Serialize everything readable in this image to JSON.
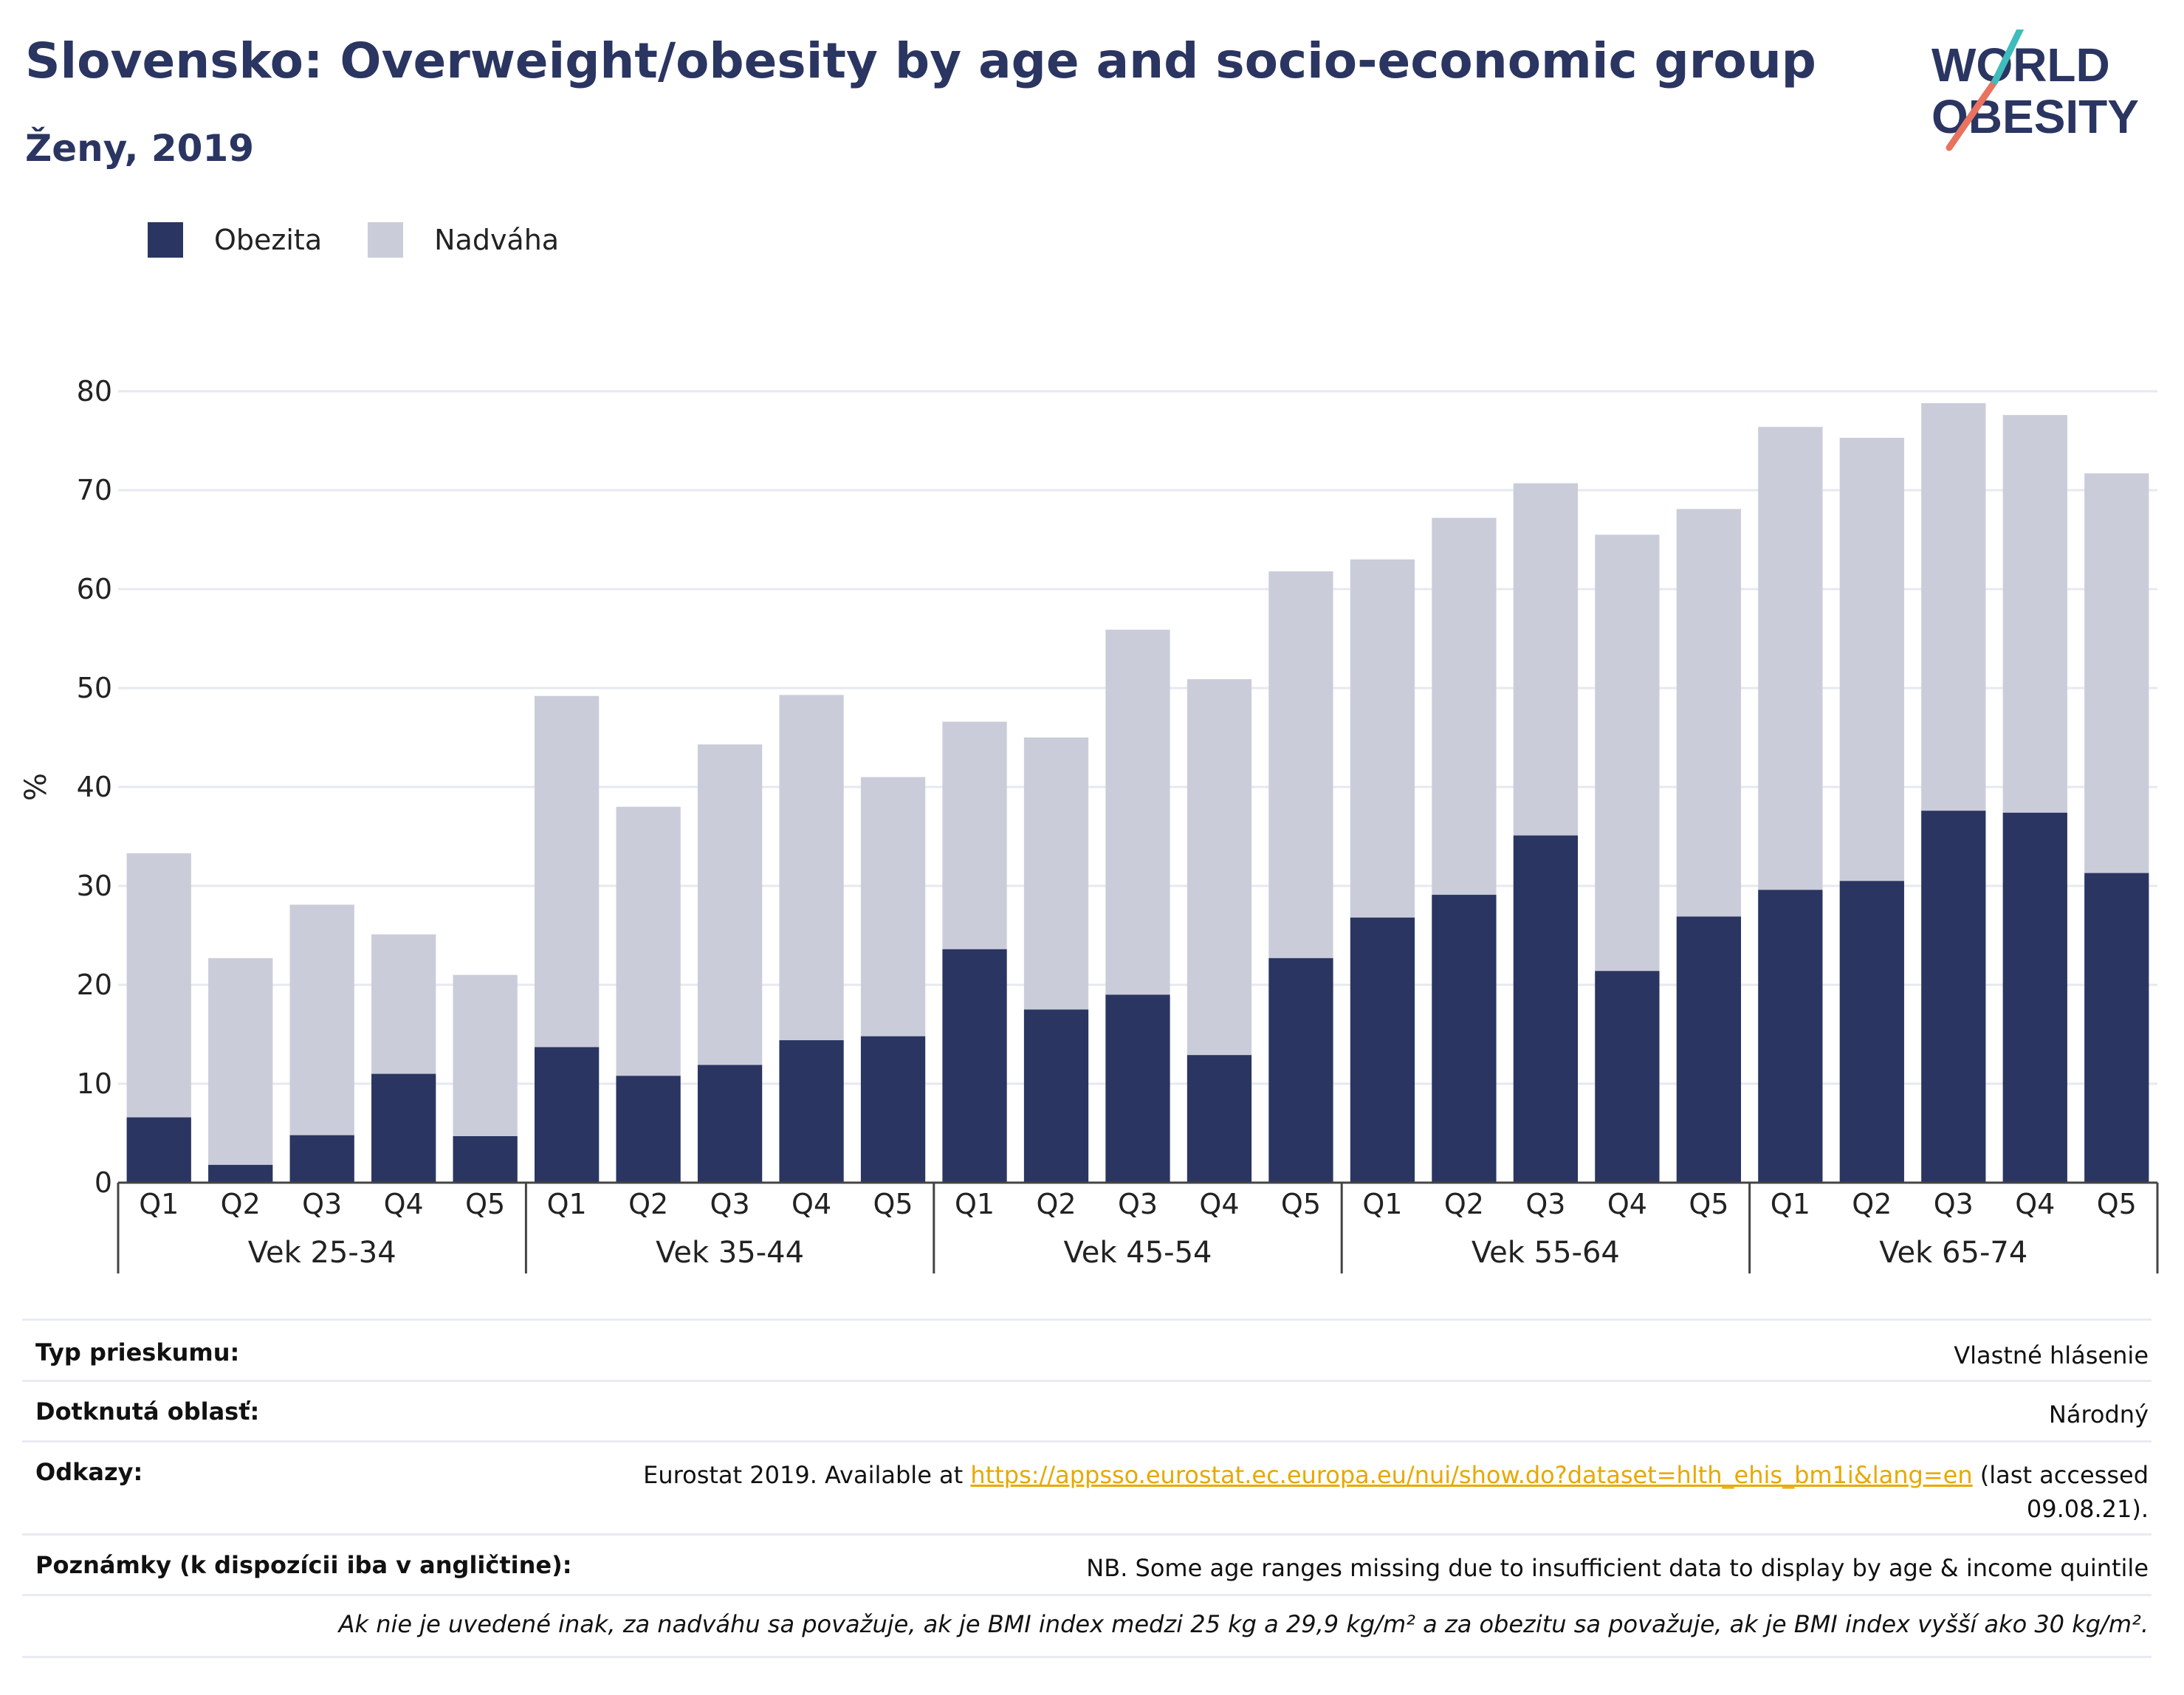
{
  "title": "Slovensko: Overweight/obesity by age and socio-economic group",
  "subtitle": "Ženy, 2019",
  "logo": {
    "line1": "WORLD",
    "line2": "OBESITY"
  },
  "legend": [
    {
      "label": "Obezita",
      "color": "#2a3561"
    },
    {
      "label": "Nadváha",
      "color": "#cacdd9"
    }
  ],
  "chart_data": {
    "type": "bar",
    "stacked": true,
    "ylabel": "%",
    "ylim": [
      0,
      80
    ],
    "yticks": [
      0,
      10,
      20,
      30,
      40,
      50,
      60,
      70,
      80
    ],
    "grid": true,
    "legend_position": "top-left",
    "groups": [
      "Vek 25-34",
      "Vek 35-44",
      "Vek 45-54",
      "Vek 55-64",
      "Vek 65-74"
    ],
    "subcategories": [
      "Q1",
      "Q2",
      "Q3",
      "Q4",
      "Q5"
    ],
    "series": [
      {
        "name": "Obezita",
        "color": "#2a3561",
        "values": [
          6.6,
          1.8,
          4.8,
          11.0,
          4.7,
          13.7,
          10.8,
          11.9,
          14.4,
          14.8,
          23.6,
          17.5,
          19.0,
          12.9,
          22.7,
          26.8,
          29.1,
          35.1,
          21.4,
          26.9,
          29.6,
          30.5,
          37.6,
          37.4,
          31.3
        ]
      },
      {
        "name": "Nadváha",
        "color": "#cacdd9",
        "values": [
          26.7,
          20.9,
          23.3,
          14.1,
          16.3,
          35.5,
          27.2,
          32.4,
          34.9,
          26.2,
          23.0,
          27.5,
          36.9,
          38.0,
          39.1,
          36.2,
          38.1,
          35.6,
          44.1,
          41.2,
          46.8,
          44.8,
          41.2,
          40.2,
          40.4
        ]
      }
    ]
  },
  "info": {
    "survey_label": "Typ prieskumu:",
    "survey_value": "Vlastné hlásenie",
    "area_label": "Dotknutá oblasť:",
    "area_value": "Národný",
    "refs_label": "Odkazy:",
    "refs_prefix": "Eurostat 2019. Available at ",
    "refs_link": "https://appsso.eurostat.ec.europa.eu/nui/show.do?dataset=hlth_ehis_bm1i&lang=en",
    "refs_suffix": " (last accessed",
    "refs_date": "09.08.21).",
    "notes_label": "Poznámky (k dispozícii iba v angličtine):",
    "notes_value": "NB. Some age ranges missing due to insufficient data to display by age & income quintile",
    "footnote": "Ak nie je uvedené inak, za nadváhu sa považuje, ak je BMI index medzi 25 kg a 29,9 kg/m² a za obezitu sa považuje, ak je BMI index vyšší ako 30 kg/m²."
  }
}
